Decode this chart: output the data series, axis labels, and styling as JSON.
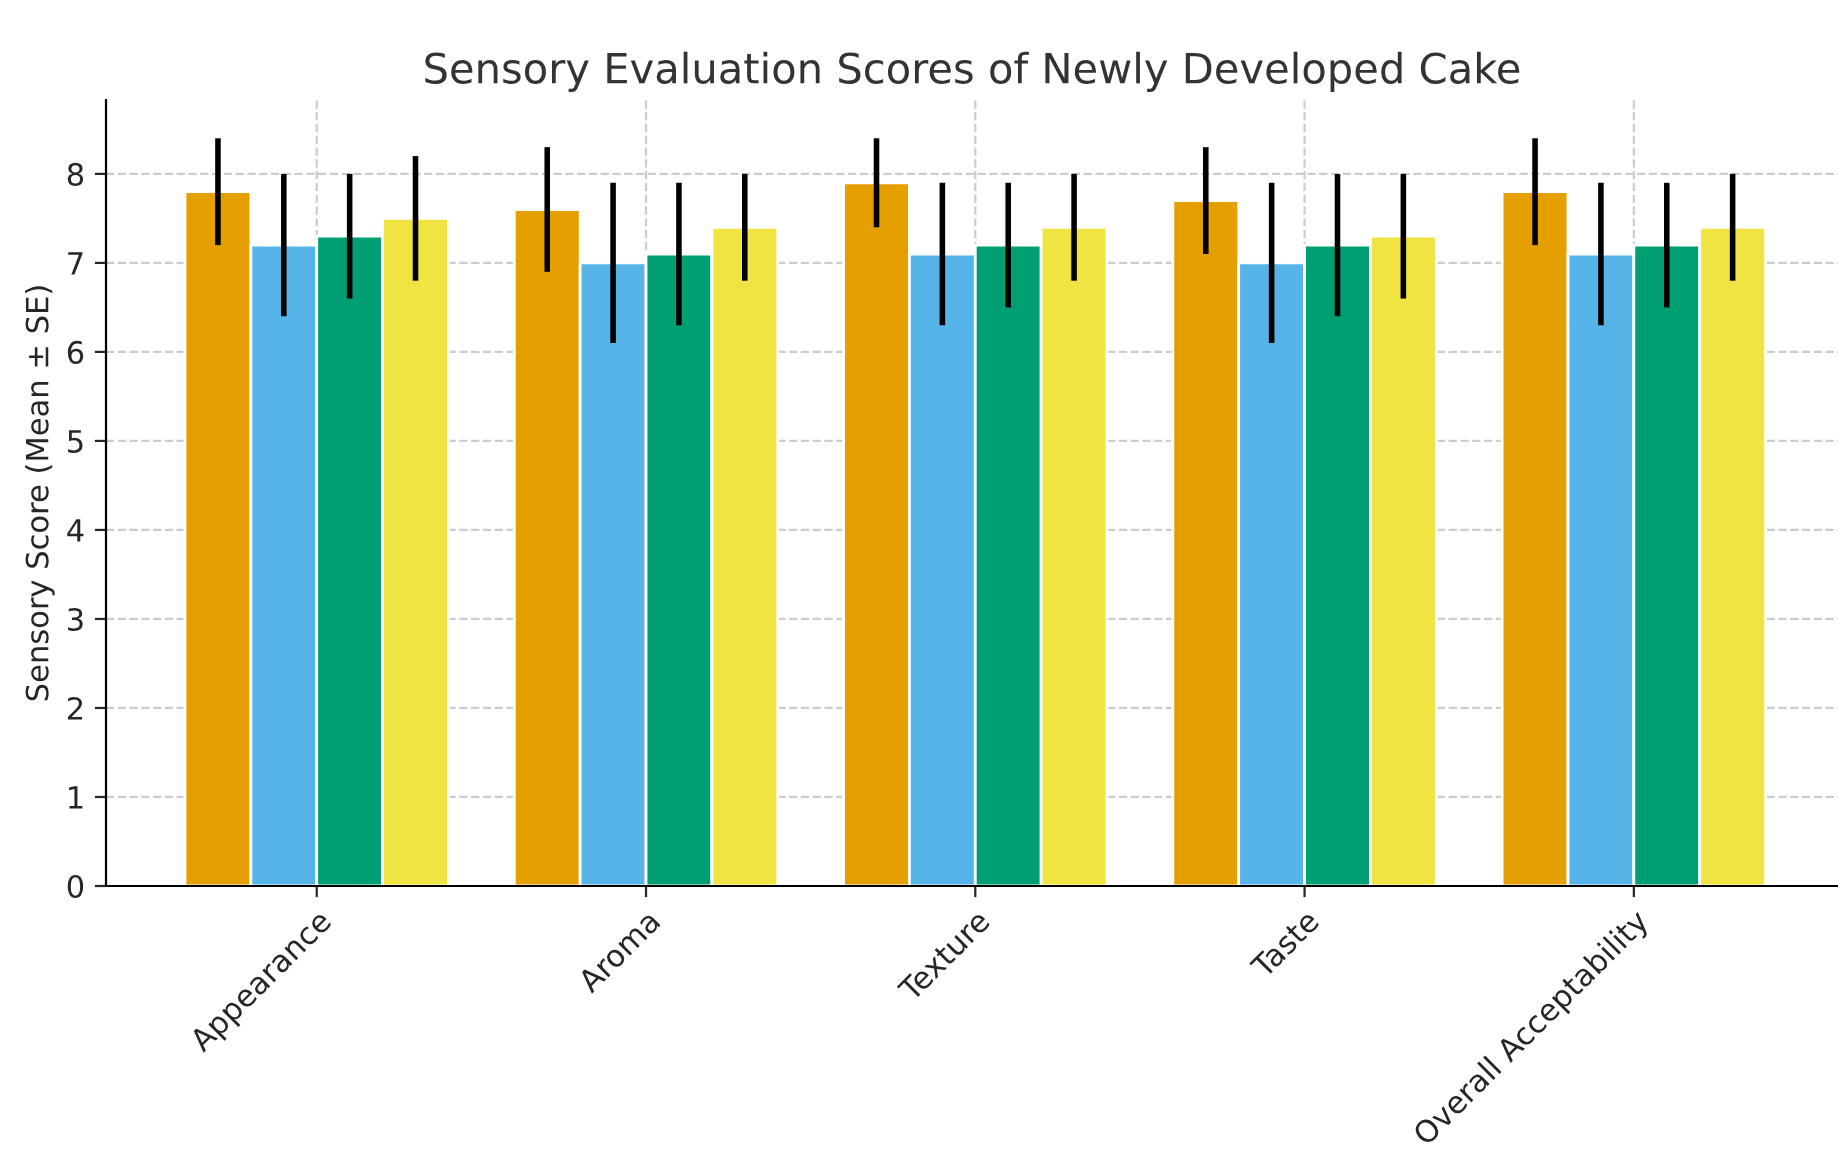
{
  "chart_data": {
    "type": "bar",
    "title": "Sensory Evaluation Scores of Newly Developed Cake",
    "ylabel": "Sensory Score (Mean ± SE)",
    "categories": [
      "Appearance",
      "Aroma",
      "Texture",
      "Taste",
      "Overall Acceptability"
    ],
    "series": [
      {
        "color": "#e69f00",
        "values": [
          7.8,
          7.6,
          7.9,
          7.7,
          7.8
        ],
        "errors": [
          0.6,
          0.7,
          0.5,
          0.6,
          0.6
        ]
      },
      {
        "color": "#56b4e9",
        "values": [
          7.2,
          7.0,
          7.1,
          7.0,
          7.1
        ],
        "errors": [
          0.8,
          0.9,
          0.8,
          0.9,
          0.8
        ]
      },
      {
        "color": "#009e73",
        "values": [
          7.3,
          7.1,
          7.2,
          7.2,
          7.2
        ],
        "errors": [
          0.7,
          0.8,
          0.7,
          0.8,
          0.7
        ]
      },
      {
        "color": "#f0e442",
        "values": [
          7.5,
          7.4,
          7.4,
          7.3,
          7.4
        ],
        "errors": [
          0.7,
          0.6,
          0.6,
          0.7,
          0.6
        ]
      }
    ],
    "ylim": [
      0,
      8.83
    ],
    "yticks": [
      0,
      1,
      2,
      3,
      4,
      5,
      6,
      7,
      8
    ],
    "grid": true
  }
}
